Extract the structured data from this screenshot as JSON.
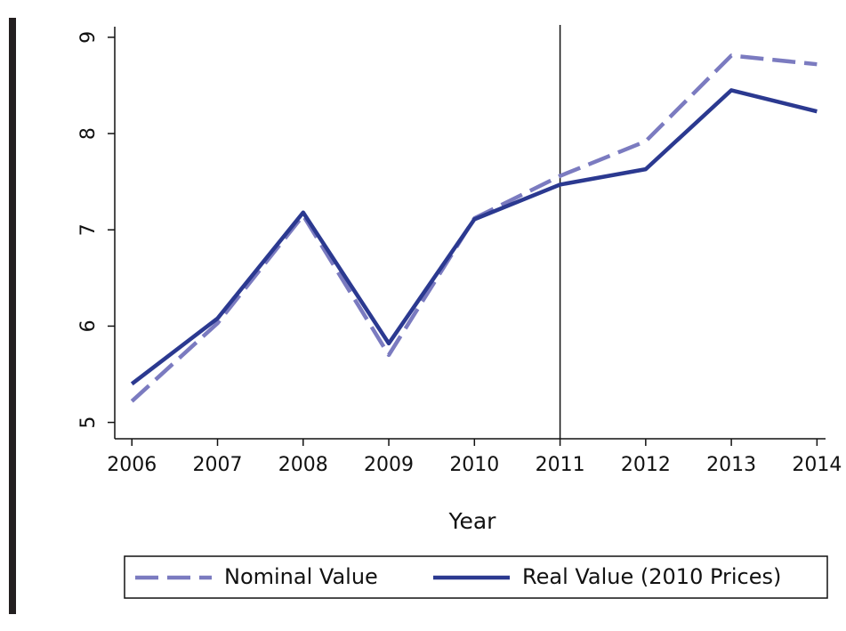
{
  "chart_data": {
    "type": "line",
    "x_label": "Year",
    "x": [
      2006,
      2007,
      2008,
      2009,
      2010,
      2011,
      2012,
      2013,
      2014
    ],
    "series": [
      {
        "name": "Nominal Value",
        "color": "#7b7bc0",
        "dash": true,
        "values": [
          5.22,
          6.03,
          7.15,
          5.7,
          7.12,
          7.56,
          7.92,
          8.81,
          8.72
        ]
      },
      {
        "name": "Real Value (2010 Prices)",
        "color": "#2b3990",
        "dash": false,
        "values": [
          5.4,
          6.08,
          7.18,
          5.82,
          7.11,
          7.47,
          7.63,
          8.45,
          8.23
        ]
      }
    ],
    "vline": 2011,
    "xlim": [
      2005.8,
      2014.1
    ],
    "xticks": [
      2006,
      2007,
      2008,
      2009,
      2010,
      2011,
      2012,
      2013,
      2014
    ],
    "ylim": [
      4.83,
      9.11
    ],
    "yticks": [
      5,
      6,
      7,
      8,
      9
    ],
    "legend": "bottom"
  }
}
